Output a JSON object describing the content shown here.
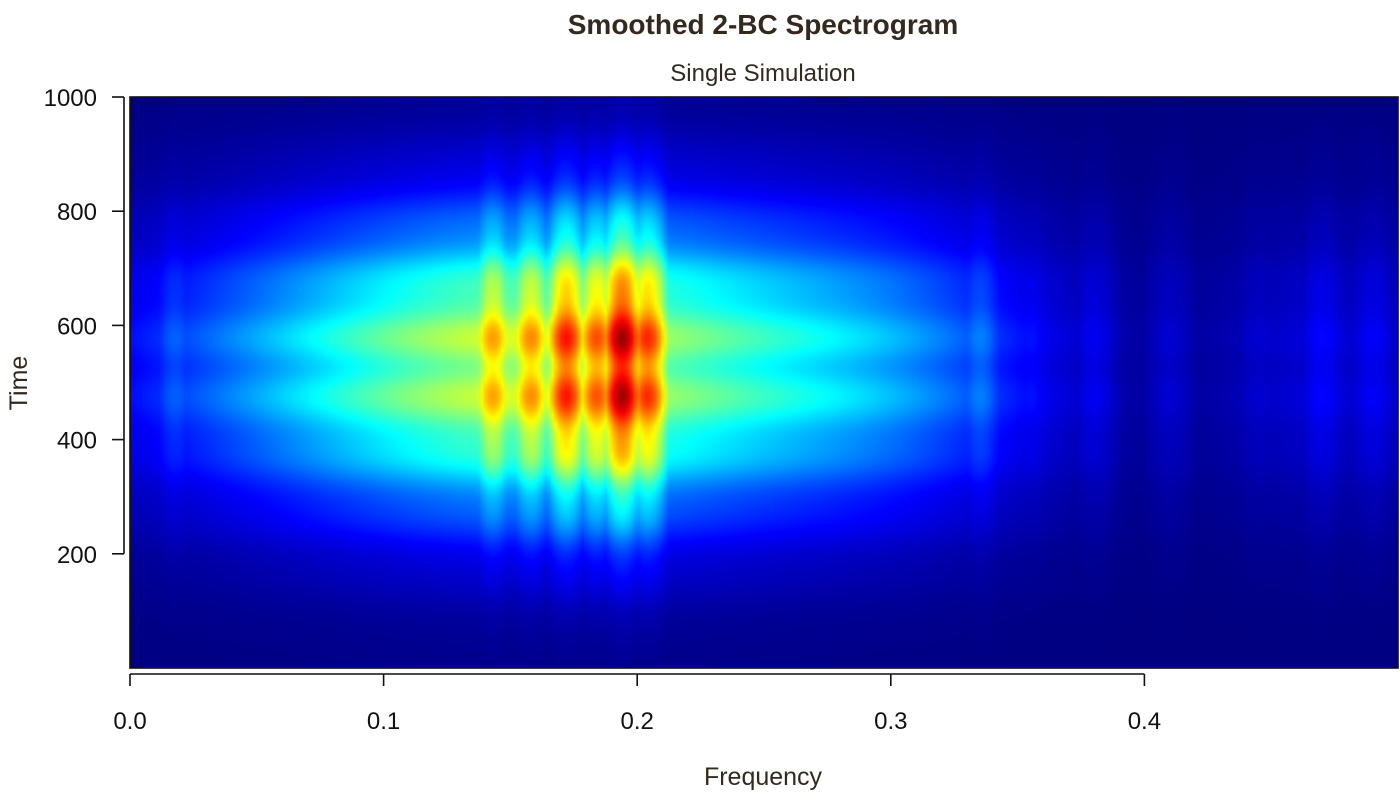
{
  "chart_data": {
    "type": "heatmap",
    "title": "Smoothed 2-BC Spectrogram",
    "subtitle": "Single Simulation",
    "xlabel": "Frequency",
    "ylabel": "Time",
    "xlim": [
      0,
      0.5
    ],
    "ylim": [
      0,
      1000
    ],
    "x_ticks": [
      "0.0",
      "0.1",
      "0.2",
      "0.3",
      "0.4"
    ],
    "y_ticks": [
      "200",
      "400",
      "600",
      "800",
      "1000"
    ],
    "colormap": [
      "#00007f",
      "#0000ff",
      "#00ffff",
      "#ffff00",
      "#ff0000",
      "#7f0000"
    ],
    "time_profile": {
      "center": 530,
      "width": 185
    },
    "frequency_peaks": [
      {
        "f": 0.018,
        "intensity": 0.22
      },
      {
        "f": 0.035,
        "intensity": 0.2
      },
      {
        "f": 0.06,
        "intensity": 0.24
      },
      {
        "f": 0.082,
        "intensity": 0.3
      },
      {
        "f": 0.096,
        "intensity": 0.26
      },
      {
        "f": 0.115,
        "intensity": 0.45
      },
      {
        "f": 0.128,
        "intensity": 0.55
      },
      {
        "f": 0.143,
        "intensity": 0.72
      },
      {
        "f": 0.158,
        "intensity": 0.74
      },
      {
        "f": 0.172,
        "intensity": 0.86
      },
      {
        "f": 0.184,
        "intensity": 0.8
      },
      {
        "f": 0.194,
        "intensity": 0.97
      },
      {
        "f": 0.204,
        "intensity": 0.84
      },
      {
        "f": 0.222,
        "intensity": 0.46
      },
      {
        "f": 0.25,
        "intensity": 0.38
      },
      {
        "f": 0.284,
        "intensity": 0.28
      },
      {
        "f": 0.31,
        "intensity": 0.26
      },
      {
        "f": 0.335,
        "intensity": 0.25
      },
      {
        "f": 0.355,
        "intensity": 0.14
      },
      {
        "f": 0.38,
        "intensity": 0.11
      },
      {
        "f": 0.41,
        "intensity": 0.08
      },
      {
        "f": 0.445,
        "intensity": 0.08
      },
      {
        "f": 0.47,
        "intensity": 0.13
      },
      {
        "f": 0.49,
        "intensity": 0.12
      }
    ]
  }
}
